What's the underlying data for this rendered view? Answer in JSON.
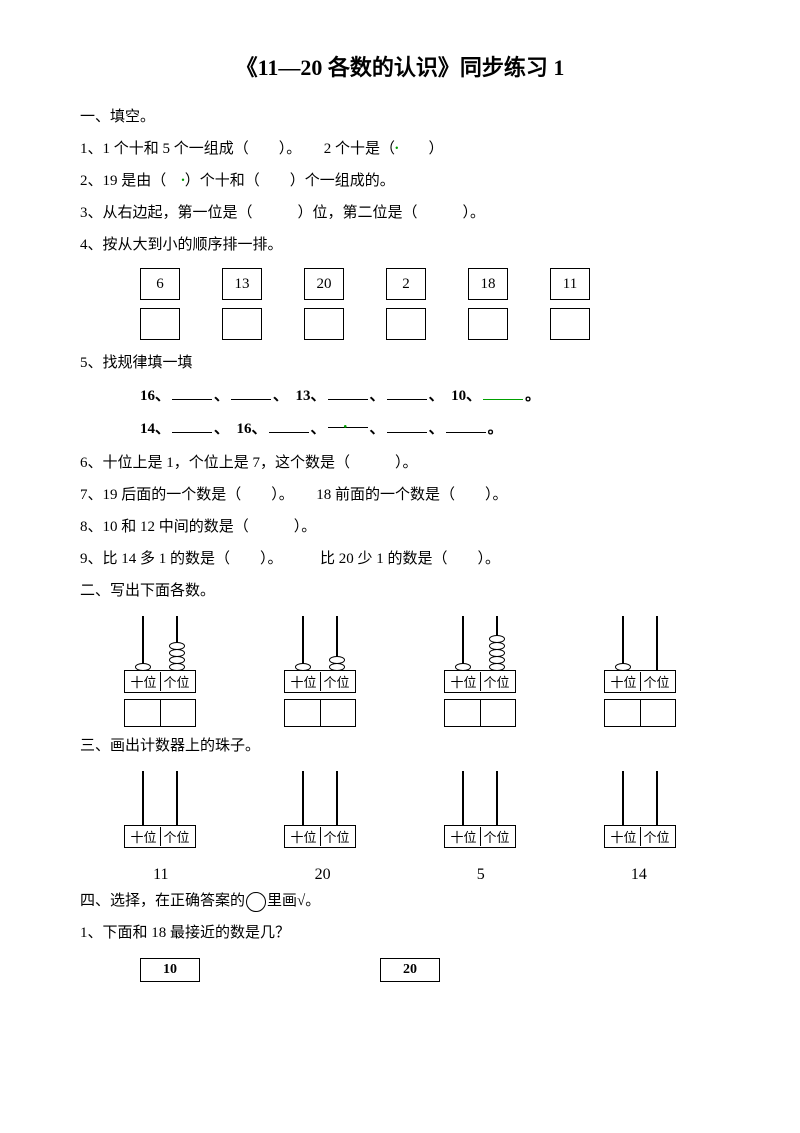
{
  "title": "《11—20 各数的认识》同步练习 1",
  "section1": {
    "heading": "一、填空。",
    "q1": "1、1 个十和 5 个一组成（　　）。　　2 个十是（",
    "q1_end": "　　）",
    "q2a": "2、19 是由（　",
    "q2b": "）个十和（　　）个一组成的。",
    "q3": "3、从右边起，第一位是（　　　）位，第二位是（　　　）。",
    "q4": "4、按从大到小的顺序排一排。",
    "boxes": [
      "6",
      "13",
      "20",
      "2",
      "18",
      "11"
    ],
    "q5": "5、找规律填一填",
    "seq1_a": "16、",
    "seq1_b": "、",
    "seq1_c": "、　13、",
    "seq1_d": "、",
    "seq1_e": "、　10、",
    "seq1_f": "。",
    "seq2_a": "14、",
    "seq2_b": "、　16、",
    "seq2_c": "、",
    "seq2_d": "、",
    "seq2_e": "、",
    "seq2_f": "。",
    "q6": "6、十位上是 1，个位上是 7，这个数是（　　　）。",
    "q7": "7、19 后面的一个数是（　　）。　　18 前面的一个数是（　　）。",
    "q8": "8、10 和 12 中间的数是（　　　）。",
    "q9": "9、比 14 多 1 的数是（　　）。　　　比 20 少 1 的数是（　　）。"
  },
  "section2": {
    "heading": "二、写出下面各数。",
    "abacus": [
      {
        "tens": 1,
        "ones": 4
      },
      {
        "tens": 1,
        "ones": 2
      },
      {
        "tens": 1,
        "ones": 5
      },
      {
        "tens": 1,
        "ones": 0
      }
    ],
    "tens_label": "十位",
    "ones_label": "个位"
  },
  "section3": {
    "heading": "三、画出计数器上的珠子。",
    "numbers": [
      "11",
      "20",
      "5",
      "14"
    ]
  },
  "section4": {
    "heading_a": "四、选择，在正确答案的",
    "heading_b": "里画√。",
    "q1": "1、下面和 18 最接近的数是几？",
    "choices": [
      "10",
      "20"
    ]
  },
  "colors": {
    "text": "#000000",
    "accent_green": "#00a000",
    "background": "#ffffff"
  }
}
